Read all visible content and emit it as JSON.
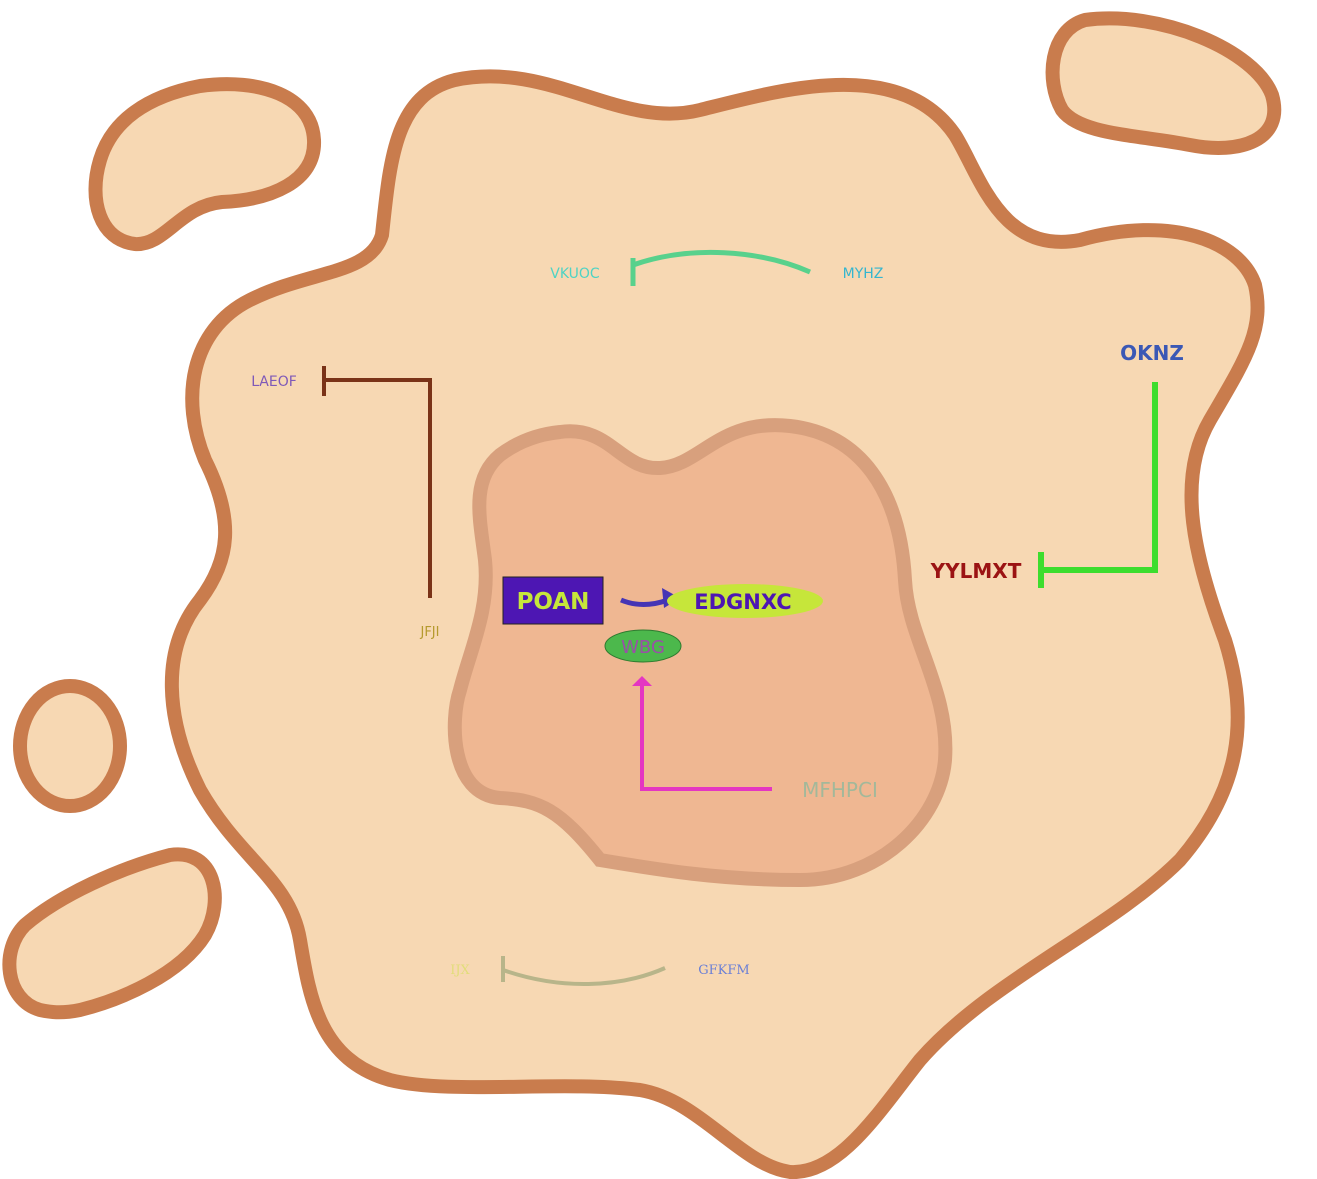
{
  "colors": {
    "background": "#ffffff",
    "cell_fill": "#f7d8b3",
    "cell_stroke": "#c97c4d",
    "nucleus_fill": "#efb792",
    "nucleus_stroke": "#d8a07d"
  },
  "nodes": {
    "vkuoc": {
      "label": "VKUOC",
      "color": "#4fd3c4"
    },
    "myhz": {
      "label": "MYHZ",
      "color": "#35b6cf"
    },
    "laeof": {
      "label": "LAEOF",
      "color": "#7f59b8"
    },
    "jfji": {
      "label": "JFJI",
      "color": "#b59a2e"
    },
    "oknz": {
      "label": "OKNZ",
      "color": "#3b58b5"
    },
    "yylmxt": {
      "label": "YYLMXT",
      "color": "#9b1313"
    },
    "poan": {
      "label": "POAN",
      "color": "#c6e63a",
      "box_fill": "#4d16b3"
    },
    "edgnxc": {
      "label": "EDGNXC",
      "color": "#4d16b3",
      "box_fill": "#c6e63a"
    },
    "wbg": {
      "label": "WBG",
      "color": "#9a4fa8",
      "box_fill": "#4cb84c"
    },
    "mfhpci": {
      "label": "MFHPCI",
      "color": "#a3b89a"
    },
    "ijx": {
      "label": "IJX",
      "color": "#e2dd7a"
    },
    "gfkfm": {
      "label": "GFKFM",
      "color": "#6a7fd6"
    }
  },
  "edges": [
    {
      "from": "MYHZ",
      "to": "VKUOC",
      "type": "inhibition",
      "color": "#58d18c"
    },
    {
      "from": "JFJI",
      "to": "LAEOF",
      "type": "inhibition",
      "color": "#7a3318"
    },
    {
      "from": "OKNZ",
      "to": "YYLMXT",
      "type": "inhibition",
      "color": "#3ddd2e"
    },
    {
      "from": "POAN",
      "to": "EDGNXC",
      "type": "activation",
      "color": "#4535b5"
    },
    {
      "from": "MFHPCI",
      "to": "WBG",
      "type": "activation",
      "color": "#e436c2"
    },
    {
      "from": "GFKFM",
      "to": "IJX",
      "type": "inhibition",
      "color": "#b8b58a"
    }
  ]
}
